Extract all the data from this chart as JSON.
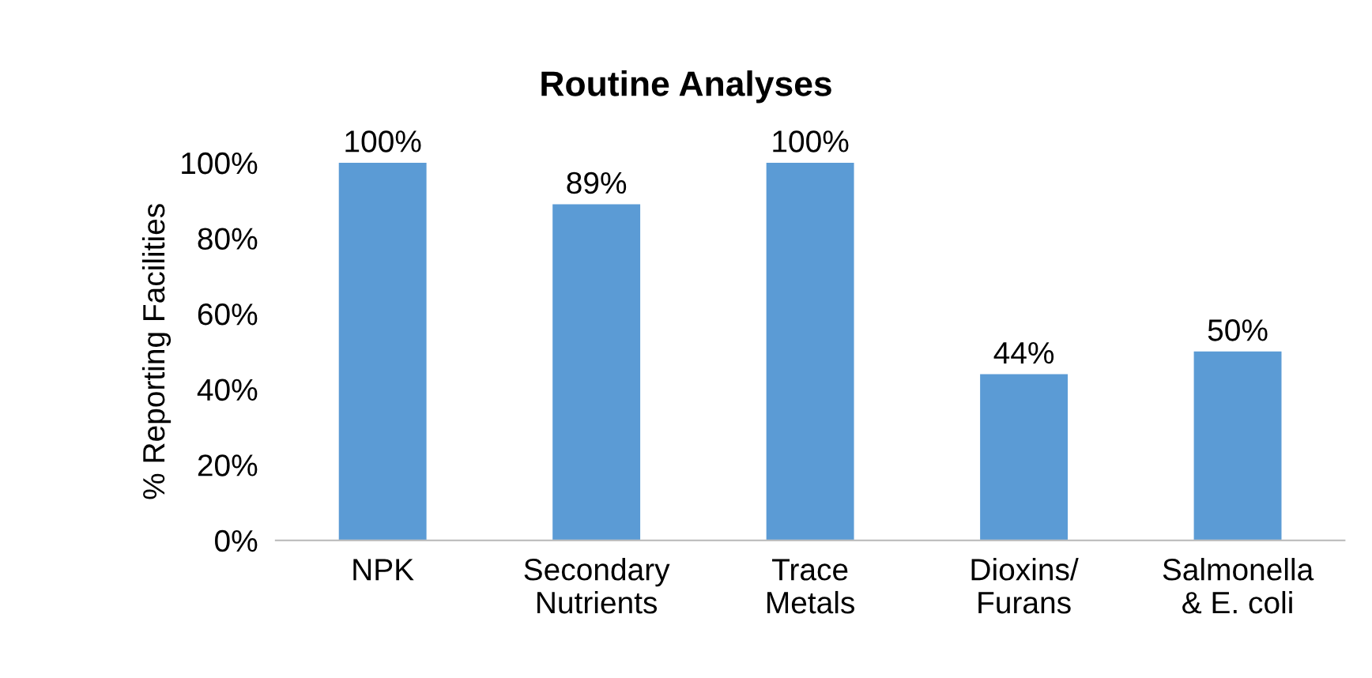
{
  "chart_data": {
    "type": "bar",
    "title": "Routine Analyses",
    "ylabel": "% Reporting Facilities",
    "categories": [
      "NPK",
      "Secondary\nNutrients",
      "Trace\nMetals",
      "Dioxins/\nFurans",
      "Salmonella\n& E. coli"
    ],
    "values": [
      100,
      89,
      100,
      44,
      50
    ],
    "value_labels": [
      "100%",
      "89%",
      "100%",
      "44%",
      "50%"
    ],
    "color": "#5b9bd5",
    "ylim": [
      0,
      100
    ],
    "yticks": [
      {
        "value": 0,
        "label": "0%"
      },
      {
        "value": 20,
        "label": "20%"
      },
      {
        "value": 40,
        "label": "40%"
      },
      {
        "value": 60,
        "label": "60%"
      },
      {
        "value": 80,
        "label": "80%"
      },
      {
        "value": 100,
        "label": "100%"
      }
    ],
    "grid": false,
    "legend": false
  }
}
